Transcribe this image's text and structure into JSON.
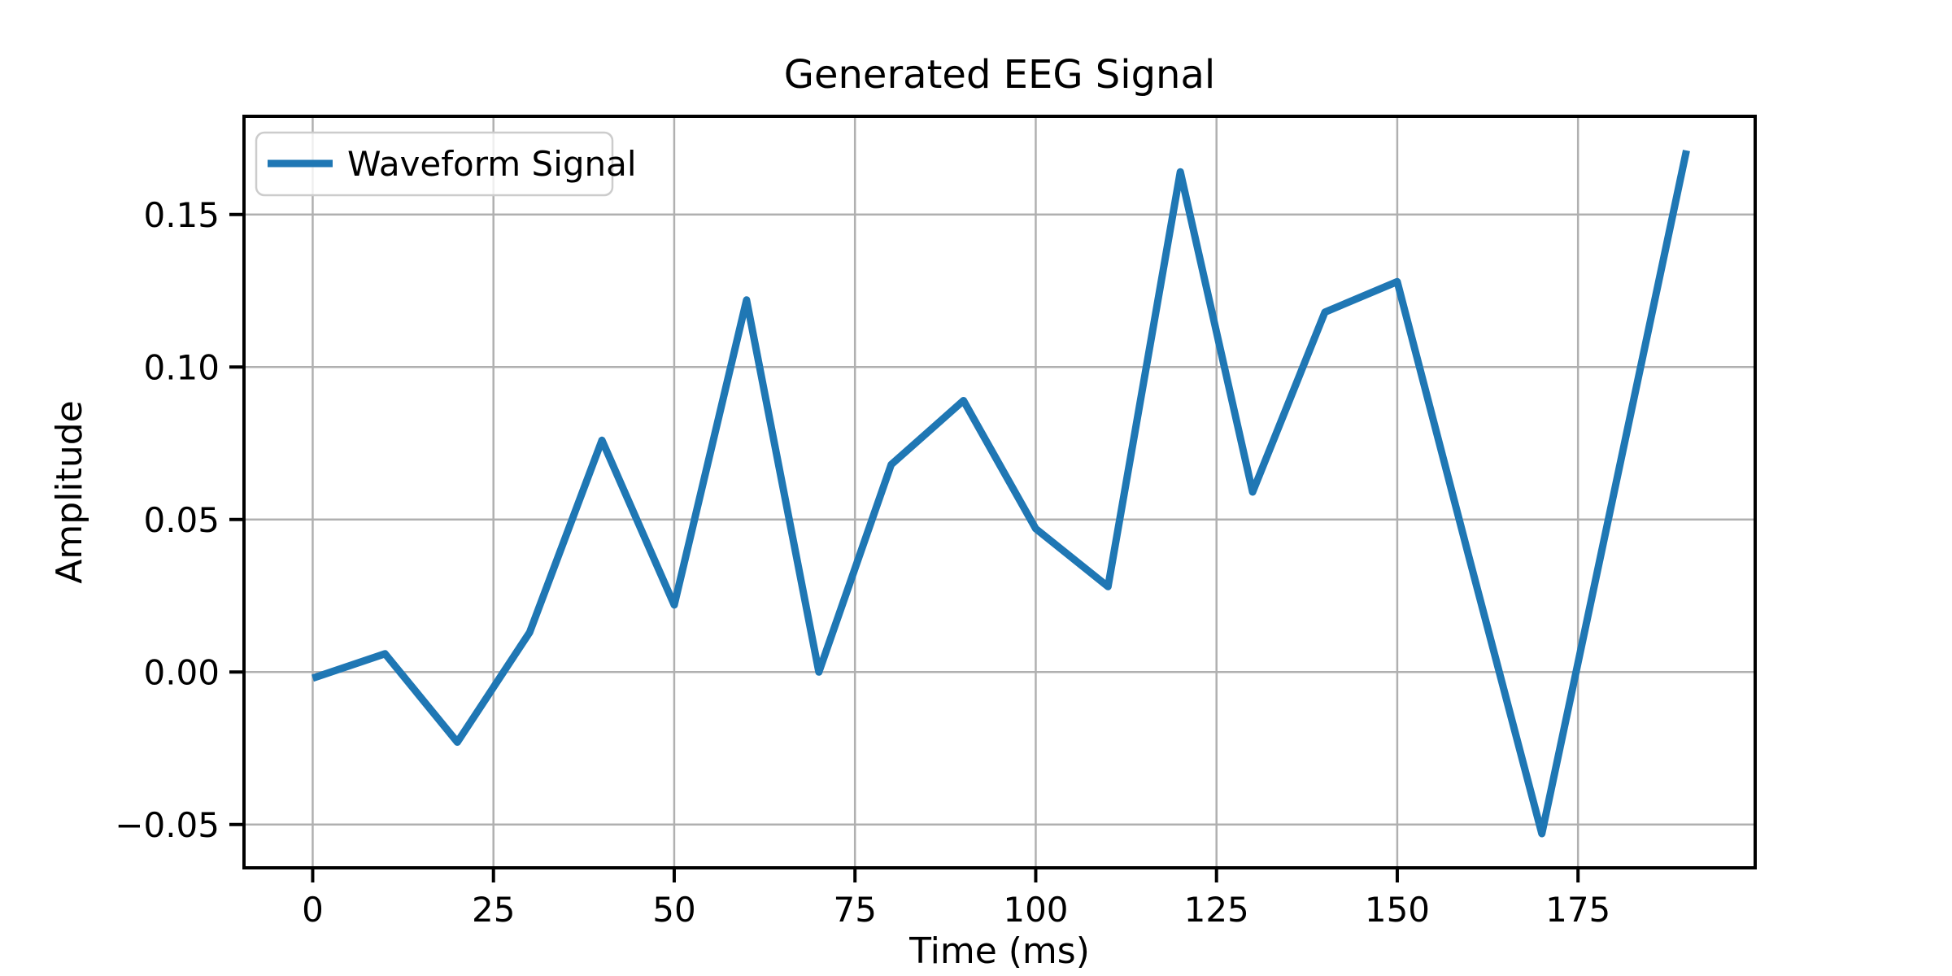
{
  "chart_data": {
    "type": "line",
    "title": "Generated EEG Signal",
    "xlabel": "Time (ms)",
    "ylabel": "Amplitude",
    "grid": true,
    "legend_position": "upper left",
    "series": [
      {
        "name": "Waveform Signal",
        "color": "#1f77b4",
        "x": [
          0,
          10,
          20,
          30,
          40,
          50,
          60,
          70,
          80,
          90,
          100,
          110,
          120,
          130,
          140,
          150,
          160,
          170,
          180,
          190
        ],
        "y": [
          -0.002,
          0.006,
          -0.023,
          0.013,
          0.076,
          0.022,
          0.122,
          0.0,
          0.068,
          0.089,
          0.047,
          0.028,
          0.164,
          0.059,
          0.118,
          0.128,
          0.037,
          -0.053,
          0.059,
          0.171
        ]
      }
    ],
    "xlim": [
      -9.5,
      199.5
    ],
    "ylim": [
      -0.0642,
      0.1822
    ],
    "xticks": {
      "values": [
        0,
        25,
        50,
        75,
        100,
        125,
        150,
        175
      ],
      "labels": [
        "0",
        "25",
        "50",
        "75",
        "100",
        "125",
        "150",
        "175"
      ]
    },
    "yticks": {
      "values": [
        -0.05,
        0.0,
        0.05,
        0.1,
        0.15
      ],
      "labels": [
        "−0.05",
        "0.00",
        "0.05",
        "0.10",
        "0.15"
      ]
    }
  },
  "colors": {
    "line": "#1f77b4",
    "grid": "#b0b0b0",
    "spine": "#000000",
    "text": "#000000",
    "legend_edge": "#cccccc",
    "background": "#ffffff"
  }
}
